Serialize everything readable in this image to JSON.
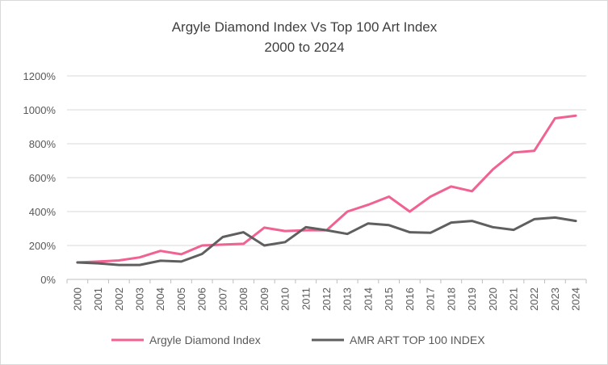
{
  "chart_data": {
    "type": "line",
    "title": "Argyle Diamond Index Vs Top 100 Art Index",
    "subtitle": "2000 to 2024",
    "x": [
      "2000",
      "2001",
      "2002",
      "2003",
      "2004",
      "2005",
      "2006",
      "2007",
      "2008",
      "2009",
      "2010",
      "2011",
      "2012",
      "2013",
      "2014",
      "2015",
      "2016",
      "2017",
      "2018",
      "2019",
      "2020",
      "2021",
      "2022",
      "2023",
      "2024"
    ],
    "y_ticks": [
      "0%",
      "200%",
      "400%",
      "600%",
      "800%",
      "1000%",
      "1200%"
    ],
    "ylim": [
      0,
      1200
    ],
    "y_unit": "%",
    "grid": "horizontal",
    "legend_position": "bottom",
    "series": [
      {
        "name": "Argyle Diamond Index",
        "color": "#f06292",
        "values": [
          100,
          105,
          112,
          130,
          168,
          148,
          200,
          205,
          210,
          305,
          285,
          290,
          290,
          400,
          440,
          488,
          400,
          488,
          548,
          520,
          648,
          748,
          758,
          950,
          965
        ]
      },
      {
        "name": "AMR ART TOP 100 INDEX",
        "color": "#5f5f5f",
        "values": [
          100,
          95,
          85,
          85,
          110,
          105,
          150,
          250,
          278,
          200,
          220,
          308,
          290,
          268,
          330,
          320,
          278,
          275,
          335,
          345,
          308,
          292,
          355,
          365,
          345
        ]
      }
    ]
  }
}
